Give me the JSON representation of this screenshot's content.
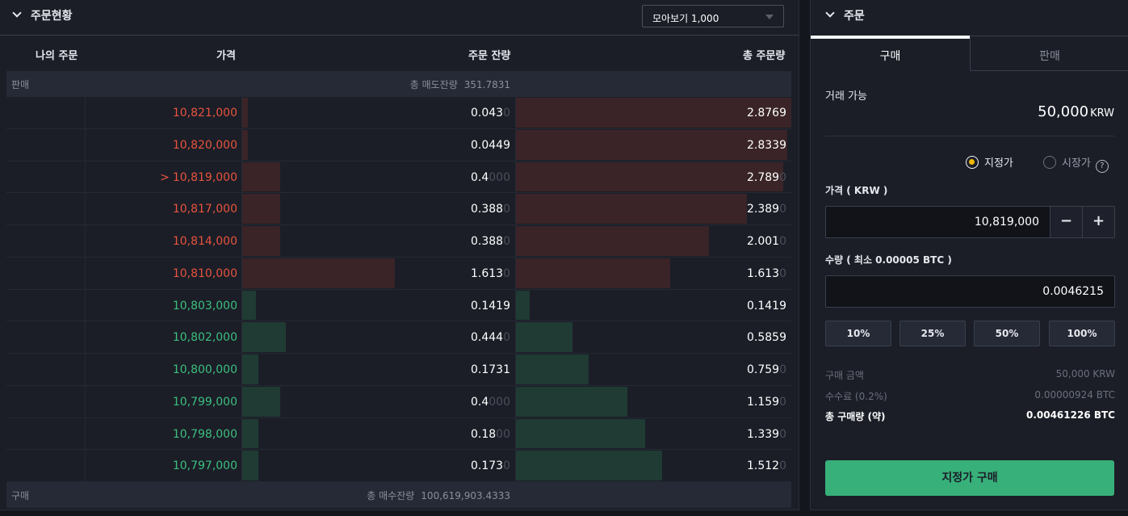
{
  "orderbook": {
    "title": "주문현황",
    "grouping": "모아보기 1,000",
    "columns": {
      "my_orders": "나의 주문",
      "price": "가격",
      "remaining": "주문 잔량",
      "total": "총 주문량"
    },
    "ask_summary": {
      "label": "판매",
      "text": "총 매도잔량",
      "value": "351.7831"
    },
    "bid_summary": {
      "label": "구매",
      "text": "총 매수잔량",
      "value": "100,619,903.4333"
    },
    "colors": {
      "ask": "#e8533e",
      "bid": "#3dbf7f",
      "ask_bar": "#3a2427",
      "bid_bar": "#1f3b33"
    },
    "rows": [
      {
        "side": "ask",
        "marker": "",
        "price": "10,821,000",
        "qty": "0.043",
        "qty_pad": "0",
        "total": "2.8769",
        "total_pad": "",
        "qty_fill": 0.02,
        "total_fill": 1.0
      },
      {
        "side": "ask",
        "marker": "",
        "price": "10,820,000",
        "qty": "0.0449",
        "qty_pad": "",
        "total": "2.8339",
        "total_pad": "",
        "qty_fill": 0.02,
        "total_fill": 0.985
      },
      {
        "side": "ask",
        "marker": ">",
        "price": "10,819,000",
        "qty": "0.4",
        "qty_pad": "000",
        "total": "2.789",
        "total_pad": "0",
        "qty_fill": 0.14,
        "total_fill": 0.97
      },
      {
        "side": "ask",
        "marker": "",
        "price": "10,817,000",
        "qty": "0.388",
        "qty_pad": "0",
        "total": "2.389",
        "total_pad": "0",
        "qty_fill": 0.14,
        "total_fill": 0.84
      },
      {
        "side": "ask",
        "marker": "",
        "price": "10,814,000",
        "qty": "0.388",
        "qty_pad": "0",
        "total": "2.001",
        "total_pad": "0",
        "qty_fill": 0.14,
        "total_fill": 0.7
      },
      {
        "side": "ask",
        "marker": "",
        "price": "10,810,000",
        "qty": "1.613",
        "qty_pad": "0",
        "total": "1.613",
        "total_pad": "0",
        "qty_fill": 0.56,
        "total_fill": 0.56
      },
      {
        "side": "bid",
        "marker": "",
        "price": "10,803,000",
        "qty": "0.1419",
        "qty_pad": "",
        "total": "0.1419",
        "total_pad": "",
        "qty_fill": 0.05,
        "total_fill": 0.05
      },
      {
        "side": "bid",
        "marker": "",
        "price": "10,802,000",
        "qty": "0.444",
        "qty_pad": "0",
        "total": "0.5859",
        "total_pad": "",
        "qty_fill": 0.16,
        "total_fill": 0.205
      },
      {
        "side": "bid",
        "marker": "",
        "price": "10,800,000",
        "qty": "0.1731",
        "qty_pad": "",
        "total": "0.759",
        "total_pad": "0",
        "qty_fill": 0.06,
        "total_fill": 0.265
      },
      {
        "side": "bid",
        "marker": "",
        "price": "10,799,000",
        "qty": "0.4",
        "qty_pad": "000",
        "total": "1.159",
        "total_pad": "0",
        "qty_fill": 0.14,
        "total_fill": 0.405
      },
      {
        "side": "bid",
        "marker": "",
        "price": "10,798,000",
        "qty": "0.18",
        "qty_pad": "00",
        "total": "1.339",
        "total_pad": "0",
        "qty_fill": 0.06,
        "total_fill": 0.47
      },
      {
        "side": "bid",
        "marker": "",
        "price": "10,797,000",
        "qty": "0.173",
        "qty_pad": "0",
        "total": "1.512",
        "total_pad": "0",
        "qty_fill": 0.06,
        "total_fill": 0.53
      }
    ]
  },
  "order": {
    "title": "주문",
    "tabs": {
      "buy": "구매",
      "sell": "판매"
    },
    "available_label": "거래 가능",
    "available_value": "50,000",
    "available_unit": "KRW",
    "type_limit": "지정가",
    "type_market": "시장가",
    "help_icon": "?",
    "price_label": "가격 ( KRW )",
    "price_value": "10,819,000",
    "minus": "−",
    "plus": "+",
    "qty_label": "수량 ( 최소 0.00005 BTC )",
    "qty_value": "0.0046215",
    "percents": [
      "10%",
      "25%",
      "50%",
      "100%"
    ],
    "summary": [
      {
        "label": "구매 금액",
        "value": "50,000 KRW"
      },
      {
        "label": "수수료 (0.2%)",
        "value": "0.00000924 BTC"
      },
      {
        "label": "총 구매량 (약)",
        "value": "0.00461226 BTC"
      }
    ],
    "submit": "지정가 구매",
    "submit_color": "#37b07a"
  }
}
